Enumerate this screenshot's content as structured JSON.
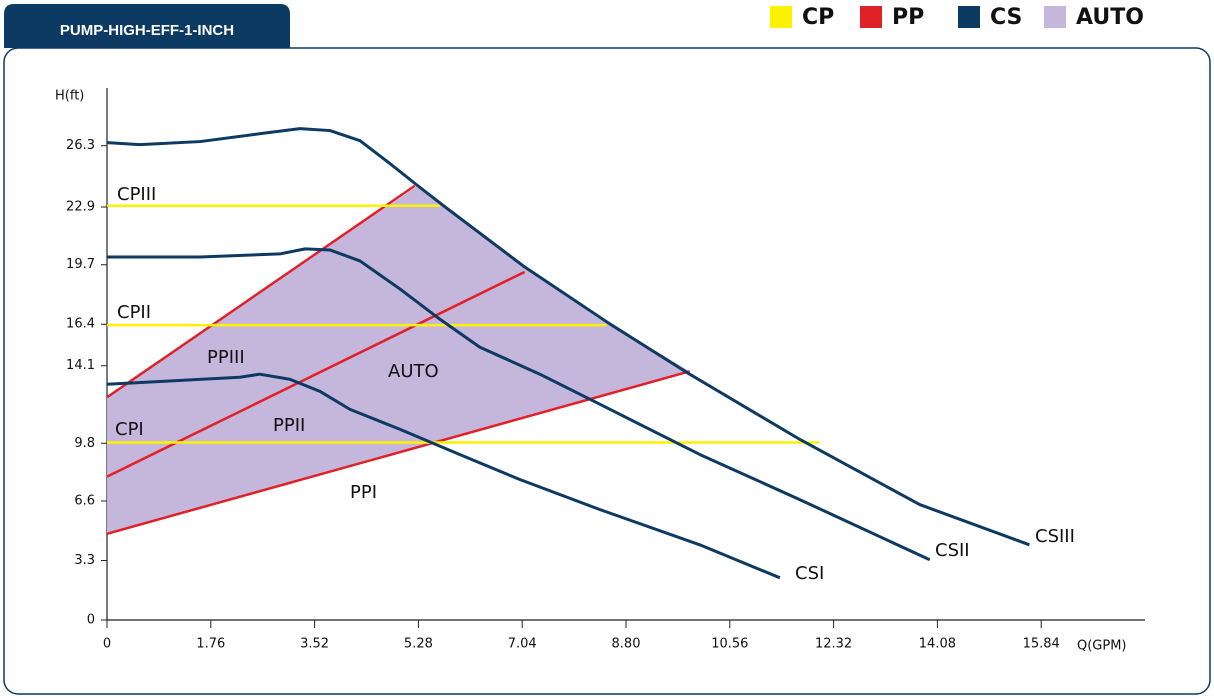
{
  "chart_data": {
    "type": "pump-curve",
    "title": "PUMP-HIGH-EFF-1-INCH",
    "y_label": "H(ft)",
    "x_label": "Q(GPM)",
    "xlim": [
      0,
      17.6
    ],
    "ylim": [
      0,
      29.5
    ],
    "xticks": [
      0,
      1.76,
      3.52,
      5.28,
      7.04,
      {
        "value": 8.8,
        "label": "8.80"
      },
      10.56,
      12.32,
      14.08,
      15.84
    ],
    "yticks": [
      0,
      3.3,
      6.6,
      9.8,
      14.1,
      16.4,
      19.7,
      22.9,
      26.3
    ],
    "legend": [
      {
        "name": "CP",
        "color": "#fff200"
      },
      {
        "name": "PP",
        "color": "#e02127"
      },
      {
        "name": "CS",
        "color": "#0d3a63"
      },
      {
        "name": "AUTO",
        "color": "#c5b6dc"
      }
    ],
    "auto_region": {
      "name": "AUTO",
      "color": "#c5b6dc",
      "x": [
        0,
        9.88,
        8.53,
        7.08,
        5.73,
        5.27,
        0
      ],
      "y": [
        4.78,
        13.79,
        16.41,
        19.58,
        22.91,
        24.08,
        12.35
      ]
    },
    "series": [
      {
        "name": "CPIII",
        "color": "#fff200",
        "x": [
          0,
          5.64
        ],
        "y": [
          22.97,
          22.97
        ]
      },
      {
        "name": "CPII",
        "color": "#fff200",
        "x": [
          0,
          8.47
        ],
        "y": [
          16.35,
          16.35
        ]
      },
      {
        "name": "CPI",
        "color": "#fff200",
        "x": [
          0,
          12.08
        ],
        "y": [
          9.84,
          9.84
        ]
      },
      {
        "name": "PPIII",
        "color": "#e02127",
        "x": [
          0,
          5.22
        ],
        "y": [
          12.35,
          24.08
        ]
      },
      {
        "name": "PPII",
        "color": "#e02127",
        "x": [
          0,
          7.08
        ],
        "y": [
          7.95,
          19.3
        ]
      },
      {
        "name": "PPI",
        "color": "#e02127",
        "x": [
          0,
          9.88
        ],
        "y": [
          4.78,
          13.79
        ]
      },
      {
        "name": "CSIII",
        "color": "#0d3a63",
        "x": [
          0,
          0.56,
          1.58,
          2.6,
          3.27,
          3.78,
          4.29,
          4.8,
          5.27,
          5.73,
          7.08,
          8.53,
          9.88,
          11.75,
          13.78,
          15.64
        ],
        "y": [
          26.47,
          26.36,
          26.53,
          26.97,
          27.25,
          27.14,
          26.58,
          25.3,
          24.08,
          22.91,
          19.58,
          16.41,
          13.63,
          10.01,
          6.4,
          4.17
        ]
      },
      {
        "name": "CSII",
        "color": "#0d3a63",
        "x": [
          0,
          1.58,
          2.93,
          3.36,
          3.78,
          4.29,
          4.97,
          5.64,
          6.32,
          7.34,
          8.36,
          10.05,
          11.75,
          13.95
        ],
        "y": [
          20.13,
          20.13,
          20.3,
          20.58,
          20.52,
          19.91,
          18.35,
          16.69,
          15.13,
          13.63,
          11.96,
          9.18,
          6.67,
          3.34
        ]
      },
      {
        "name": "CSI",
        "color": "#0d3a63",
        "x": [
          0,
          2.25,
          2.59,
          3.1,
          3.61,
          4.12,
          4.97,
          5.98,
          7.0,
          8.36,
          10.05,
          11.41
        ],
        "y": [
          13.07,
          13.46,
          13.63,
          13.35,
          12.68,
          11.68,
          10.57,
          9.18,
          7.79,
          6.12,
          4.17,
          2.34
        ]
      }
    ]
  }
}
